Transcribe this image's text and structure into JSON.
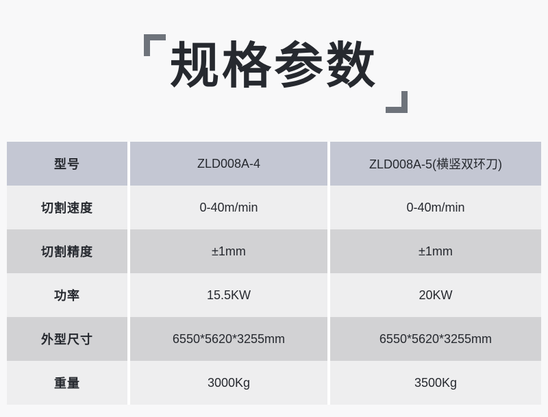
{
  "title": {
    "text": "规格参数"
  },
  "table": {
    "rows": [
      {
        "label": "型号",
        "col1": "ZLD008A-4",
        "col2": "ZLD008A-5(横竖双环刀)"
      },
      {
        "label": "切割速度",
        "col1": "0-40m/min",
        "col2": "0-40m/min"
      },
      {
        "label": "切割精度",
        "col1": "±1mm",
        "col2": "±1mm"
      },
      {
        "label": "功率",
        "col1": "15.5KW",
        "col2": "20KW"
      },
      {
        "label": "外型尺寸",
        "col1": "6550*5620*3255mm",
        "col2": "6550*5620*3255mm"
      },
      {
        "label": "重量",
        "col1": "3000Kg",
        "col2": "3500Kg"
      }
    ]
  },
  "colors": {
    "page-bg": "#f8f8f9",
    "header-row-bg": "#c4c7d3",
    "row-light-bg": "#eeeeef",
    "row-gray-bg": "#d2d2d4",
    "divider": "#ffffff",
    "text": "#26292f",
    "bracket": "#6e737b"
  }
}
